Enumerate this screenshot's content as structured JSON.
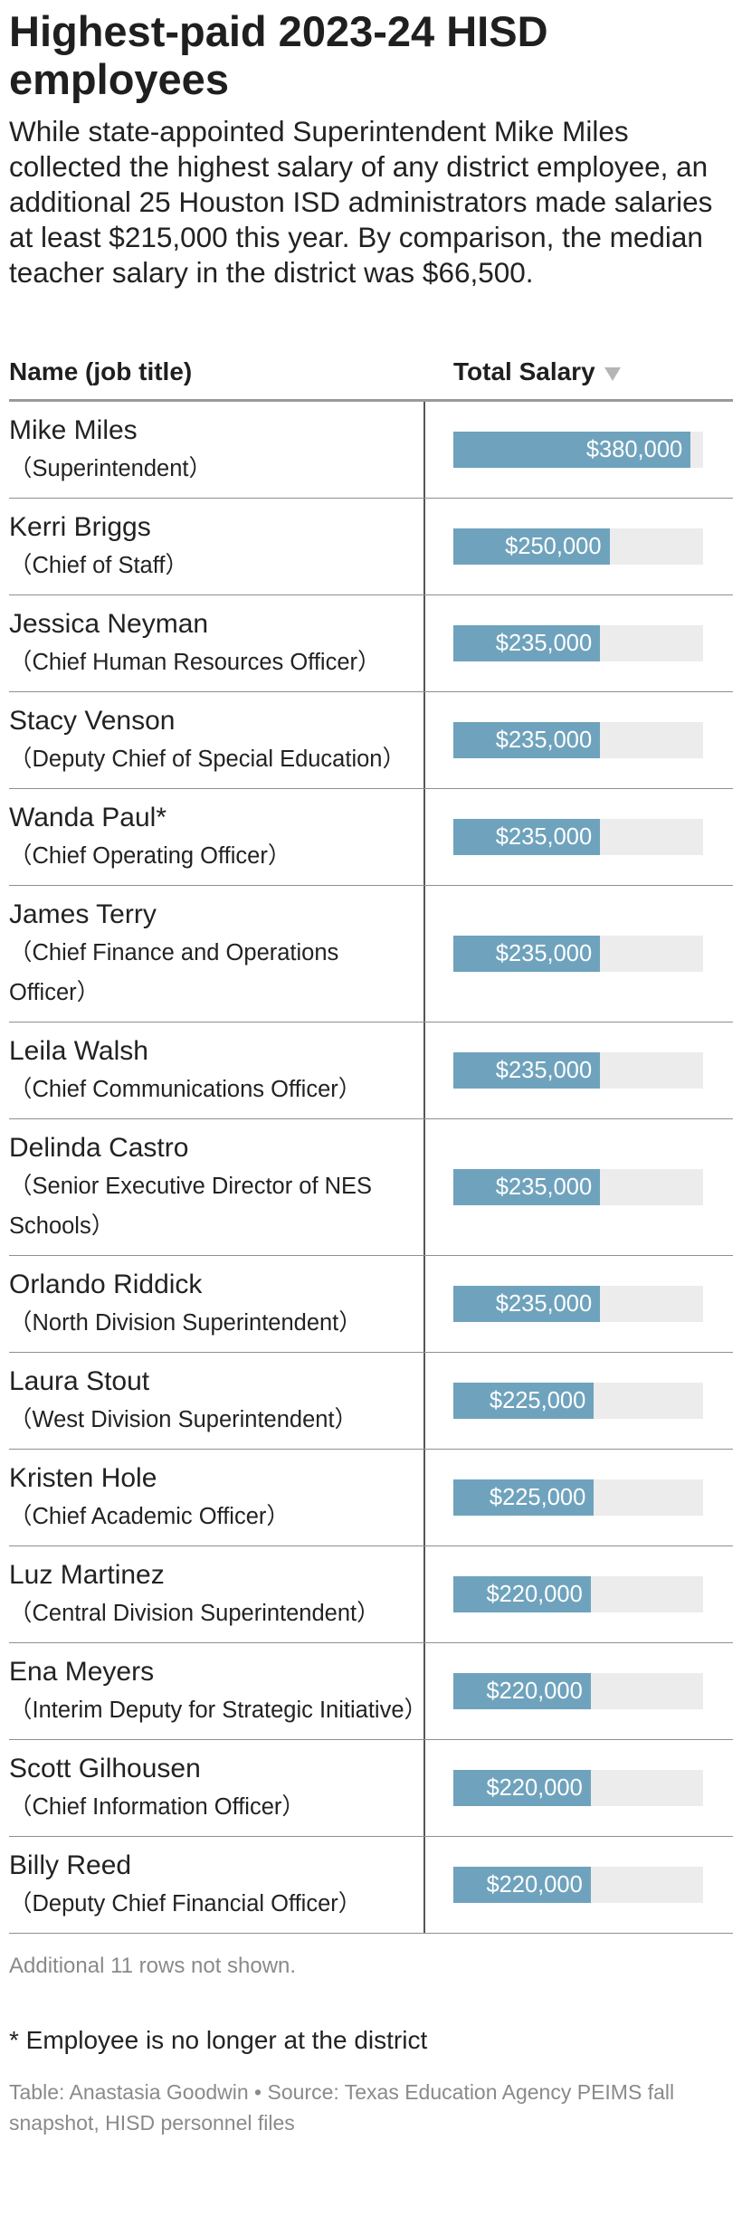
{
  "header": {
    "title": "Highest-paid 2023-24 HISD employees",
    "description": "While state-appointed Superintendent Mike Miles collected the highest salary of any district employee, an additional 25 Houston ISD administrators made salaries at least $215,000 this year. By comparison, the median teacher salary in the district was $66,500."
  },
  "table": {
    "col_name": "Name (job title)",
    "col_salary": "Total Salary",
    "sort_icon": "sort-down-icon"
  },
  "chart_data": {
    "type": "bar",
    "orientation": "horizontal",
    "bar_color": "#6fa3bd",
    "track_color": "#ececec",
    "xlim": [
      0,
      400000
    ],
    "rows": [
      {
        "name": "Mike Miles",
        "title": "（Superintendent）",
        "value": 380000,
        "label": "$380,000"
      },
      {
        "name": "Kerri Briggs",
        "title": "（Chief of Staff）",
        "value": 250000,
        "label": "$250,000"
      },
      {
        "name": "Jessica Neyman",
        "title": "（Chief Human Resources Officer）",
        "value": 235000,
        "label": "$235,000"
      },
      {
        "name": "Stacy Venson",
        "title": "（Deputy Chief of Special Education）",
        "value": 235000,
        "label": "$235,000"
      },
      {
        "name": "Wanda Paul*",
        "title": "（Chief Operating Officer）",
        "value": 235000,
        "label": "$235,000"
      },
      {
        "name": "James Terry",
        "title": "（Chief Finance and Operations Officer）",
        "value": 235000,
        "label": "$235,000"
      },
      {
        "name": "Leila Walsh",
        "title": "（Chief Communications Officer）",
        "value": 235000,
        "label": "$235,000"
      },
      {
        "name": "Delinda Castro",
        "title": "（Senior Executive Director of NES Schools）",
        "value": 235000,
        "label": "$235,000"
      },
      {
        "name": "Orlando Riddick",
        "title": "（North Division Superintendent）",
        "value": 235000,
        "label": "$235,000"
      },
      {
        "name": "Laura Stout",
        "title": "（West Division Superintendent）",
        "value": 225000,
        "label": "$225,000"
      },
      {
        "name": "Kristen Hole",
        "title": "（Chief Academic Officer）",
        "value": 225000,
        "label": "$225,000"
      },
      {
        "name": "Luz Martinez",
        "title": "（Central Division Superintendent）",
        "value": 220000,
        "label": "$220,000"
      },
      {
        "name": "Ena Meyers",
        "title": "（Interim Deputy for Strategic Initiative）",
        "value": 220000,
        "label": "$220,000"
      },
      {
        "name": "Scott Gilhousen",
        "title": "（Chief Information Officer）",
        "value": 220000,
        "label": "$220,000"
      },
      {
        "name": "Billy Reed",
        "title": "（Deputy Chief Financial Officer）",
        "value": 220000,
        "label": "$220,000"
      }
    ]
  },
  "footer": {
    "rows_note": "Additional 11 rows not shown.",
    "footnote": "* Employee is no longer at the district",
    "credits": "Table: Anastasia Goodwin • Source: Texas Education Agency PEIMS fall snapshot, HISD personnel files"
  }
}
